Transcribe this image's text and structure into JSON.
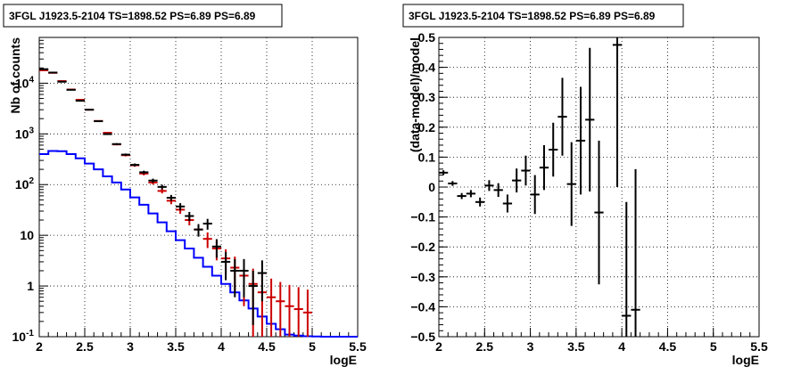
{
  "chart_data": [
    {
      "type": "step",
      "title": "3FGL J1923.5-2104 TS=1898.52 PS=6.89 PS=6.89",
      "xlabel": "logE",
      "ylabel": "Nb of counts",
      "xlim": [
        2,
        5.5
      ],
      "ylim": [
        0.1,
        80000
      ],
      "yscale": "log",
      "grid": true,
      "xticks": [
        "2",
        "2.5",
        "3",
        "3.5",
        "4",
        "4.5",
        "5",
        "5.5"
      ],
      "yticks": [
        {
          "v": 0.1,
          "label": "10^-1"
        },
        {
          "v": 1,
          "label": "1"
        },
        {
          "v": 10,
          "label": "10"
        },
        {
          "v": 100,
          "label": "10^2"
        },
        {
          "v": 1000,
          "label": "10^3"
        },
        {
          "v": 10000,
          "label": "10^4"
        }
      ],
      "series": [
        {
          "color": "#0000ff",
          "kind": "histogram",
          "edges": [
            2.0,
            2.1,
            2.2,
            2.3,
            2.4,
            2.5,
            2.6,
            2.7,
            2.8,
            2.9,
            3.0,
            3.1,
            3.2,
            3.3,
            3.4,
            3.5,
            3.6,
            3.7,
            3.8,
            3.9,
            4.0,
            4.1,
            4.2,
            4.3,
            4.4,
            4.5,
            4.6,
            4.7,
            4.8,
            4.9,
            5.0,
            5.1,
            5.2,
            5.3,
            5.4,
            5.5
          ],
          "values": [
            400,
            460,
            455,
            400,
            330,
            260,
            200,
            145,
            110,
            80,
            56,
            40,
            27,
            18,
            12,
            8,
            5.5,
            3.6,
            2.4,
            1.6,
            1.1,
            0.75,
            0.52,
            0.36,
            0.25,
            0.18,
            0.14,
            0.11,
            0.105,
            0.102,
            0.101,
            0.1,
            0.1,
            0.1,
            0.1
          ]
        },
        {
          "color": "#cc0000",
          "kind": "histogram-points",
          "x": [
            2.05,
            2.15,
            2.25,
            2.35,
            2.45,
            2.55,
            2.65,
            2.75,
            2.85,
            2.95,
            3.05,
            3.15,
            3.25,
            3.35,
            3.45,
            3.55,
            3.65,
            3.75,
            3.85,
            3.95,
            4.05,
            4.15,
            4.25,
            4.35,
            4.45,
            4.55,
            4.65,
            4.75,
            4.85,
            4.95
          ],
          "y": [
            18000,
            16000,
            11000,
            7500,
            4700,
            3000,
            1800,
            1050,
            620,
            380,
            240,
            165,
            110,
            75,
            48,
            32,
            20,
            13,
            8.5,
            5.5,
            3.5,
            2.3,
            1.6,
            1.1,
            0.75,
            0.6,
            0.5,
            0.4,
            0.35,
            0.3
          ],
          "yerr_lo": [
            130,
            120,
            100,
            85,
            70,
            55,
            42,
            32,
            25,
            20,
            15,
            13,
            10,
            8,
            7,
            5.5,
            4.3,
            3.5,
            2.9,
            2.3,
            1.8,
            1.5,
            1.2,
            1.0,
            0.72,
            0.58,
            0.49,
            0.39,
            0.34,
            0.29
          ],
          "yerr_hi": [
            130,
            120,
            100,
            85,
            70,
            55,
            42,
            32,
            25,
            20,
            15,
            13,
            10,
            8,
            7,
            5.5,
            4.3,
            3.5,
            2.9,
            2.3,
            1.8,
            1.5,
            1.3,
            1.1,
            0.9,
            0.8,
            0.7,
            0.65,
            0.6,
            0.55
          ]
        },
        {
          "color": "#000000",
          "kind": "points",
          "x": [
            2.05,
            2.15,
            2.25,
            2.35,
            2.45,
            2.55,
            2.65,
            2.75,
            2.85,
            2.95,
            3.05,
            3.15,
            3.25,
            3.35,
            3.45,
            3.55,
            3.65,
            3.75,
            3.85,
            3.95,
            4.05,
            4.15,
            4.25,
            4.35,
            4.45
          ],
          "y": [
            18900,
            16200,
            10700,
            7400,
            4500,
            3000,
            1780,
            990,
            630,
            390,
            245,
            175,
            120,
            90,
            55,
            37,
            24,
            13,
            17,
            6,
            3,
            2,
            2,
            1,
            1.8
          ],
          "yerr_lo": [
            137,
            127,
            103,
            86,
            67,
            55,
            42,
            31,
            25,
            20,
            16,
            13,
            11,
            9.5,
            7.4,
            6,
            4.9,
            3.6,
            4.1,
            2.4,
            1.7,
            1.4,
            1.4,
            0.83,
            1.3
          ],
          "yerr_hi": [
            137,
            127,
            103,
            86,
            67,
            55,
            42,
            31,
            25,
            20,
            16,
            13,
            11,
            9.5,
            7.4,
            6,
            4.9,
            3.6,
            4.1,
            2.4,
            1.7,
            1.4,
            1.4,
            1.0,
            1.4
          ]
        }
      ]
    },
    {
      "type": "scatter",
      "title": "3FGL J1923.5-2104 TS=1898.52 PS=6.89 PS=6.89",
      "xlabel": "logE",
      "ylabel": "(data-model)/model",
      "xlim": [
        2,
        5.5
      ],
      "ylim": [
        -0.5,
        0.5
      ],
      "grid": true,
      "xticks": [
        "2",
        "2.5",
        "3",
        "3.5",
        "4",
        "4.5",
        "5",
        "5.5"
      ],
      "yticks": [
        "0.5",
        "0.4",
        "0.3",
        "0.2",
        "0.1",
        "0",
        "-0.1",
        "-0.2",
        "-0.3",
        "-0.4",
        "-0.5"
      ],
      "series": [
        {
          "color": "#000000",
          "x": [
            2.05,
            2.15,
            2.25,
            2.35,
            2.45,
            2.55,
            2.65,
            2.75,
            2.85,
            2.95,
            3.05,
            3.15,
            3.25,
            3.35,
            3.45,
            3.55,
            3.65,
            3.75,
            3.95,
            4.05,
            4.15
          ],
          "y": [
            0.048,
            0.012,
            -0.03,
            -0.022,
            -0.05,
            0.005,
            -0.01,
            -0.055,
            0.022,
            0.055,
            -0.025,
            0.065,
            0.125,
            0.235,
            0.01,
            0.155,
            0.225,
            -0.085,
            0.475,
            -0.43,
            -0.41
          ],
          "yerr": [
            0.008,
            0.008,
            0.01,
            0.012,
            0.015,
            0.018,
            0.023,
            0.03,
            0.04,
            0.05,
            0.065,
            0.075,
            0.09,
            0.13,
            0.14,
            0.18,
            0.24,
            0.24,
            0.475,
            0.38,
            0.47
          ]
        }
      ]
    }
  ]
}
